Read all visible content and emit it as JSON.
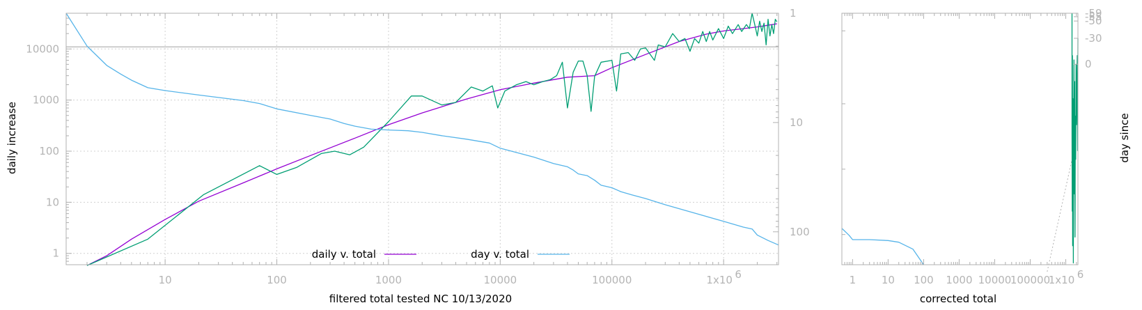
{
  "chart_data": [
    {
      "type": "line",
      "xlabel": "filtered total tested NC 10/13/2020",
      "ylabel": "daily increase",
      "y2label": "",
      "x_scale": "log",
      "y_scale": "log",
      "y2_scale": "log",
      "y2_reversed": true,
      "xlim": [
        1.3,
        3100000
      ],
      "ylim": [
        0.6,
        50000
      ],
      "y2lim": [
        1,
        200
      ],
      "grid": true,
      "legend_position": "bottom-center",
      "x_ticks": [
        "10",
        "100",
        "1000",
        "10000",
        "100000"
      ],
      "x_tick_sup": {
        "base": "1x10",
        "exp": "6"
      },
      "y_ticks": [
        "1",
        "10",
        "100",
        "1000",
        "10000"
      ],
      "y2_ticks": [
        "1",
        "10",
        "100"
      ],
      "reference_line_y": 11000,
      "series": [
        {
          "name": "daily v. total",
          "axis": "y",
          "color": "#9400d3",
          "points": [
            [
              2,
              0.58
            ],
            [
              3,
              0.9
            ],
            [
              5,
              1.9
            ],
            [
              10,
              4.6
            ],
            [
              20,
              10.5
            ],
            [
              50,
              24
            ],
            [
              100,
              45
            ],
            [
              200,
              82
            ],
            [
              500,
              180
            ],
            [
              1000,
              330
            ],
            [
              2000,
              560
            ],
            [
              5000,
              1050
            ],
            [
              10000,
              1600
            ],
            [
              20000,
              2150
            ],
            [
              40000,
              2800
            ],
            [
              70000,
              3000
            ],
            [
              100000,
              4300
            ],
            [
              200000,
              7800
            ],
            [
              400000,
              14000
            ],
            [
              700000,
              19500
            ],
            [
              1000000,
              22500
            ],
            [
              1500000,
              25000
            ],
            [
              2000000,
              27000
            ],
            [
              3000000,
              31000
            ]
          ]
        },
        {
          "name": "",
          "axis": "y",
          "color": "#009e73",
          "points": [
            [
              2,
              0.58
            ],
            [
              7,
              1.9
            ],
            [
              22,
              14
            ],
            [
              70,
              52
            ],
            [
              100,
              35
            ],
            [
              150,
              48
            ],
            [
              250,
              90
            ],
            [
              330,
              100
            ],
            [
              450,
              85
            ],
            [
              600,
              120
            ],
            [
              1000,
              380
            ],
            [
              1600,
              1200
            ],
            [
              2000,
              1200
            ],
            [
              3000,
              800
            ],
            [
              4000,
              900
            ],
            [
              5500,
              1800
            ],
            [
              7000,
              1500
            ],
            [
              8500,
              1900
            ],
            [
              9500,
              700
            ],
            [
              11000,
              1500
            ],
            [
              14000,
              2000
            ],
            [
              17000,
              2300
            ],
            [
              20000,
              2000
            ],
            [
              24000,
              2300
            ],
            [
              28000,
              2500
            ],
            [
              32000,
              3000
            ],
            [
              36000,
              5500
            ],
            [
              40000,
              700
            ],
            [
              45000,
              3500
            ],
            [
              50000,
              5800
            ],
            [
              55000,
              5800
            ],
            [
              60000,
              3000
            ],
            [
              65000,
              600
            ],
            [
              70000,
              2900
            ],
            [
              80000,
              5500
            ],
            [
              100000,
              6000
            ],
            [
              110000,
              1500
            ],
            [
              120000,
              8000
            ],
            [
              140000,
              8500
            ],
            [
              160000,
              6000
            ],
            [
              180000,
              10000
            ],
            [
              200000,
              10500
            ],
            [
              240000,
              6000
            ],
            [
              260000,
              12000
            ],
            [
              300000,
              11000
            ],
            [
              350000,
              20000
            ],
            [
              400000,
              14000
            ],
            [
              450000,
              16000
            ],
            [
              500000,
              9000
            ],
            [
              550000,
              16000
            ],
            [
              600000,
              13000
            ],
            [
              650000,
              22000
            ],
            [
              700000,
              14000
            ],
            [
              750000,
              22000
            ],
            [
              800000,
              15000
            ],
            [
              900000,
              25000
            ],
            [
              1000000,
              16000
            ],
            [
              1100000,
              28000
            ],
            [
              1200000,
              20000
            ],
            [
              1350000,
              30000
            ],
            [
              1450000,
              22000
            ],
            [
              1600000,
              30000
            ],
            [
              1700000,
              25000
            ],
            [
              1800000,
              50000
            ],
            [
              1900000,
              30000
            ],
            [
              2000000,
              18000
            ],
            [
              2100000,
              35000
            ],
            [
              2200000,
              22000
            ],
            [
              2300000,
              32000
            ],
            [
              2400000,
              12000
            ],
            [
              2500000,
              38000
            ],
            [
              2600000,
              18000
            ],
            [
              2700000,
              30000
            ],
            [
              2800000,
              20000
            ],
            [
              2900000,
              38000
            ],
            [
              3000000,
              34000
            ]
          ]
        },
        {
          "name": "day v. total",
          "axis": "y2",
          "color": "#56b4e9",
          "points": [
            [
              1.3,
              1
            ],
            [
              2,
              2
            ],
            [
              3,
              3
            ],
            [
              4,
              3.6
            ],
            [
              5,
              4.1
            ],
            [
              7,
              4.8
            ],
            [
              10,
              5.1
            ],
            [
              20,
              5.6
            ],
            [
              50,
              6.3
            ],
            [
              70,
              6.7
            ],
            [
              100,
              7.5
            ],
            [
              200,
              8.6
            ],
            [
              300,
              9.3
            ],
            [
              400,
              10.2
            ],
            [
              500,
              10.8
            ],
            [
              700,
              11.5
            ],
            [
              1000,
              11.7
            ],
            [
              1500,
              11.9
            ],
            [
              2000,
              12.3
            ],
            [
              3000,
              13.2
            ],
            [
              5000,
              14.2
            ],
            [
              8000,
              15.4
            ],
            [
              10000,
              17.2
            ],
            [
              20000,
              20.7
            ],
            [
              30000,
              23.7
            ],
            [
              40000,
              25.4
            ],
            [
              45000,
              27.2
            ],
            [
              50000,
              29.5
            ],
            [
              60000,
              30.6
            ],
            [
              70000,
              33.7
            ],
            [
              80000,
              37.5
            ],
            [
              100000,
              39.5
            ],
            [
              120000,
              42.9
            ],
            [
              150000,
              45.8
            ],
            [
              200000,
              49.6
            ],
            [
              300000,
              56.5
            ],
            [
              500000,
              65.6
            ],
            [
              1000000,
              80.3
            ],
            [
              1500000,
              90.6
            ],
            [
              1800000,
              94.2
            ],
            [
              2000000,
              107
            ],
            [
              2500000,
              120
            ],
            [
              3100000,
              132
            ]
          ]
        }
      ]
    },
    {
      "type": "line",
      "xlabel": "corrected total",
      "ylabel": "day since",
      "x_scale": "log",
      "xlim": [
        0.5,
        2200000
      ],
      "x_ticks": [
        "1",
        "10",
        "100",
        "1000",
        "10000",
        "100000"
      ],
      "x_tick_sup": {
        "base": "1x10",
        "exp": "6"
      },
      "y2_ticks": [
        "-59",
        "-55",
        "-50",
        "-30",
        "0"
      ],
      "y2lim": [
        -59,
        232
      ],
      "grid": false,
      "series": [
        {
          "name": "",
          "axis": "y2",
          "color": "#56b4e9",
          "points": [
            [
              0.5,
              190
            ],
            [
              0.8,
              198
            ],
            [
              1,
              203
            ],
            [
              3,
              203
            ],
            [
              10,
              204
            ],
            [
              20,
              206
            ],
            [
              50,
              214
            ],
            [
              100,
              240
            ]
          ]
        },
        {
          "name": "",
          "axis": "y2",
          "color": "#009e73",
          "points": [
            [
              1500000,
              -59
            ],
            [
              1500000,
              80
            ],
            [
              1520000,
              170
            ],
            [
              1540000,
              -10
            ],
            [
              1560000,
              210
            ],
            [
              1580000,
              100
            ],
            [
              1600000,
              40
            ],
            [
              1630000,
              230
            ],
            [
              1660000,
              80
            ],
            [
              1700000,
              -5
            ],
            [
              1740000,
              150
            ],
            [
              1780000,
              20
            ],
            [
              1820000,
              200
            ],
            [
              1860000,
              60
            ],
            [
              1900000,
              110
            ],
            [
              1950000,
              0
            ],
            [
              2000000,
              70
            ],
            [
              2050000,
              30
            ],
            [
              2100000,
              -10
            ],
            [
              2150000,
              100
            ],
            [
              2200000,
              -30
            ]
          ]
        }
      ],
      "dotted_line": [
        [
          300000,
          240
        ],
        [
          1500000,
          110
        ]
      ]
    }
  ]
}
